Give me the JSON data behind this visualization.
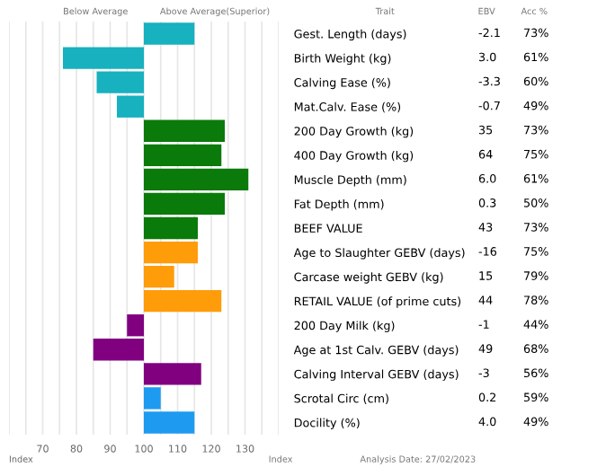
{
  "chart_data": {
    "type": "bar",
    "orientation": "horizontal",
    "categories": [
      "Gest. Length (days)",
      "Birth Weight (kg)",
      "Calving Ease (%)",
      "Mat.Calv. Ease (%)",
      "200 Day Growth (kg)",
      "400 Day Growth (kg)",
      "Muscle Depth (mm)",
      "Fat Depth (mm)",
      "BEEF VALUE",
      "Age to Slaughter GEBV (days)",
      "Carcase weight GEBV (kg)",
      "RETAIL VALUE (of prime cuts)",
      "200 Day Milk (kg)",
      "Age at 1st Calv. GEBV (days)",
      "Calving Interval GEBV (days)",
      "Scrotal Circ (cm)",
      "Docility (%)"
    ],
    "base": [
      100,
      100,
      100,
      100,
      100,
      100,
      100,
      100,
      100,
      100,
      100,
      100,
      100,
      100,
      100,
      100,
      100
    ],
    "values": [
      15,
      -24,
      -14,
      -8,
      24,
      23,
      31,
      24,
      16,
      16,
      9,
      23,
      -5,
      -15,
      17,
      5,
      15
    ],
    "colors": [
      "#17b1bf",
      "#17b1bf",
      "#17b1bf",
      "#17b1bf",
      "#0a7a0a",
      "#0a7a0a",
      "#0a7a0a",
      "#0a7a0a",
      "#0a7a0a",
      "#ff9c0a",
      "#ff9c0a",
      "#ff9c0a",
      "#800080",
      "#800080",
      "#800080",
      "#1e9bf0",
      "#1e9bf0"
    ],
    "xlim": [
      60,
      140
    ],
    "xticks": [
      {
        "value": 60,
        "label": null
      },
      {
        "value": 65,
        "label": null
      },
      70,
      {
        "value": 75,
        "label": null
      },
      80,
      {
        "value": 85,
        "label": null
      },
      90,
      {
        "value": 95,
        "label": null
      },
      100,
      {
        "value": 105,
        "label": null
      },
      110,
      {
        "value": 115,
        "label": null
      },
      120,
      {
        "value": 125,
        "label": null
      },
      130,
      {
        "value": 135,
        "label": null
      },
      {
        "value": 140,
        "label": null
      }
    ],
    "xlabel": "Index",
    "grid": "x",
    "annotations": [
      "Below Average",
      "Above Average(Superior)",
      "Trait",
      "EBV",
      "Acc %",
      "Index",
      "Analysis Date: 27/02/2023",
      "-2.1",
      "73%",
      "3.0",
      "61%",
      "-3.3",
      "60%",
      "-0.7",
      "49%",
      "35",
      "73%",
      "64",
      "75%",
      "6.0",
      "61%",
      "0.3",
      "50%",
      "43",
      "73%",
      "-16",
      "75%",
      "15",
      "79%",
      "44",
      "78%",
      "-1",
      "44%",
      "49",
      "68%",
      "-3",
      "56%",
      "0.2",
      "59%",
      "4.0",
      "49%"
    ]
  }
}
